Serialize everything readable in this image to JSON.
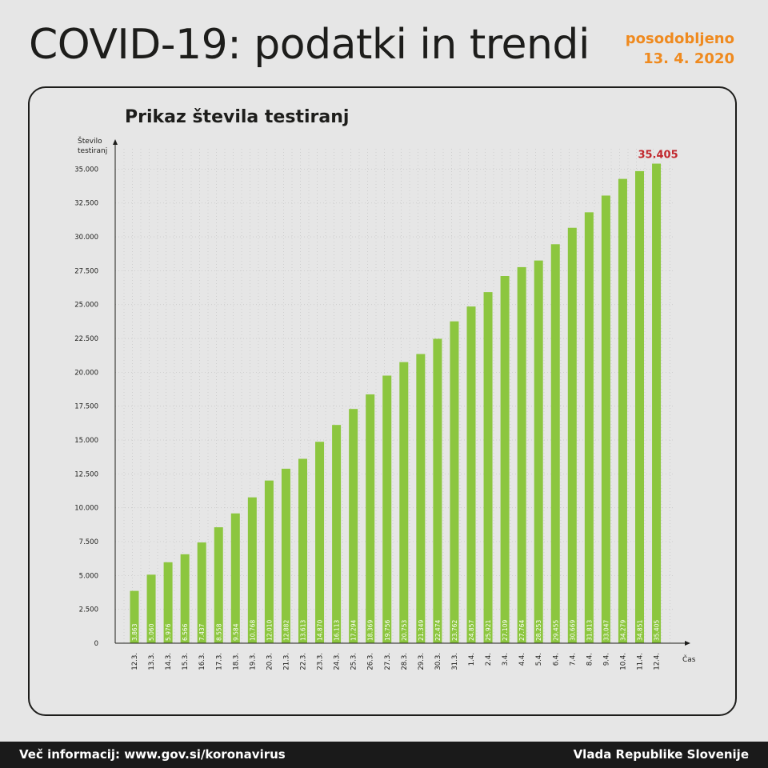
{
  "header": {
    "title": "COVID-19: podatki in trendi",
    "updated_label": "posodobljeno",
    "updated_date": "13. 4. 2020"
  },
  "footer": {
    "more_info": "Več informacij: www.gov.si/koronavirus",
    "government": "Vlada Republike Slovenije"
  },
  "colors": {
    "bar": "#8cc63f",
    "accent_orange": "#ef8a1f",
    "highlight_red": "#c1272d"
  },
  "chart_data": {
    "type": "bar",
    "title": "Prikaz števila testiranj",
    "ylabel_line1": "Število",
    "ylabel_line2": "testiranj",
    "xlabel": "Čas",
    "ylim": [
      0,
      36500
    ],
    "yticks": [
      0,
      2500,
      5000,
      7500,
      10000,
      12500,
      15000,
      17500,
      20000,
      22500,
      25000,
      27500,
      30000,
      32500,
      35000
    ],
    "ytick_labels": [
      "0",
      "2.500",
      "5.000",
      "7.500",
      "10.000",
      "12.500",
      "15.000",
      "17.500",
      "20.000",
      "22.500",
      "25.000",
      "27.500",
      "30.000",
      "32.500",
      "35.000"
    ],
    "grid": true,
    "categories": [
      "12.3.",
      "13.3.",
      "14.3.",
      "15.3.",
      "16.3.",
      "17.3.",
      "18.3.",
      "19.3.",
      "20.3.",
      "21.3.",
      "22.3.",
      "23.3.",
      "24.3.",
      "25.3.",
      "26.3.",
      "27.3.",
      "28.3.",
      "29.3.",
      "30.3.",
      "31.3.",
      "1.4.",
      "2.4.",
      "3.4.",
      "4.4.",
      "5.4.",
      "6.4.",
      "7.4.",
      "8.4.",
      "9.4.",
      "10.4.",
      "11.4.",
      "12.4."
    ],
    "values": [
      3863,
      5060,
      5976,
      6566,
      7437,
      8558,
      9584,
      10768,
      12010,
      12882,
      13613,
      14870,
      16113,
      17294,
      18369,
      19756,
      20753,
      21349,
      22474,
      23762,
      24857,
      25921,
      27109,
      27764,
      28253,
      29455,
      30669,
      31813,
      33047,
      34279,
      34851,
      35405
    ],
    "value_labels": [
      "3.863",
      "5.060",
      "5.976",
      "6.566",
      "7.437",
      "8.558",
      "9.584",
      "10.768",
      "12.010",
      "12.882",
      "13.613",
      "14.870",
      "16.113",
      "17.294",
      "18.369",
      "19.756",
      "20.753",
      "21.349",
      "22.474",
      "23.762",
      "24.857",
      "25.921",
      "27.109",
      "27.764",
      "28.253",
      "29.455",
      "30.669",
      "31.813",
      "33.047",
      "34.279",
      "34.851",
      "35.405"
    ],
    "highlight_label": "35.405"
  }
}
